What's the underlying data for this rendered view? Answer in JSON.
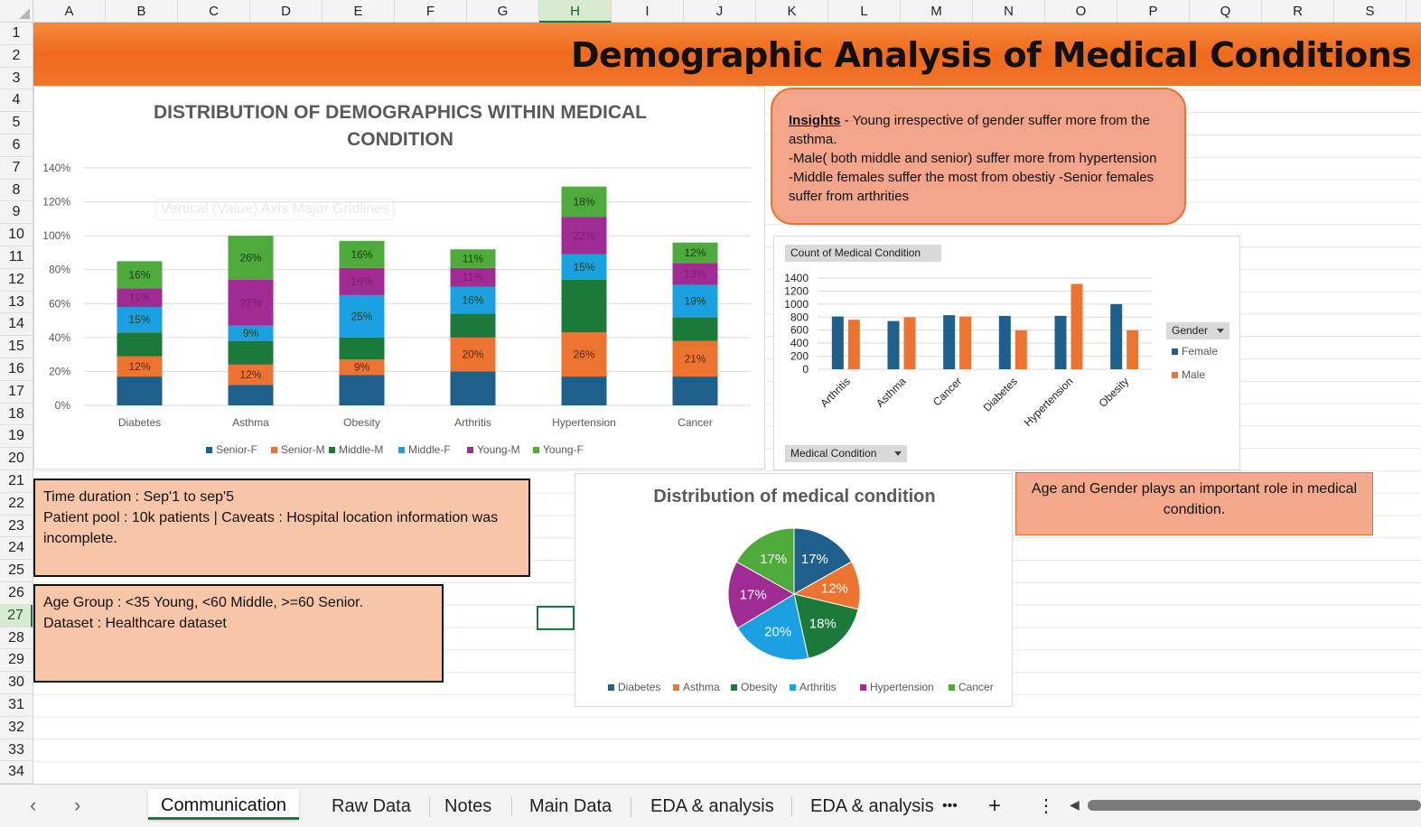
{
  "sheet": {
    "columns": [
      "A",
      "B",
      "C",
      "D",
      "E",
      "F",
      "G",
      "H",
      "I",
      "J",
      "K",
      "L",
      "M",
      "N",
      "O",
      "P",
      "Q",
      "R",
      "S"
    ],
    "selected_column": "H",
    "rows": [
      "1",
      "2",
      "3",
      "4",
      "5",
      "6",
      "7",
      "8",
      "9",
      "10",
      "11",
      "12",
      "13",
      "14",
      "15",
      "16",
      "17",
      "18",
      "19",
      "20",
      "21",
      "22",
      "23",
      "24",
      "25",
      "26",
      "27",
      "28",
      "29",
      "30",
      "31",
      "32",
      "33",
      "34"
    ],
    "selected_row": "27"
  },
  "banner": {
    "title": "Demographic Analysis of Medical Conditions"
  },
  "stacked_chart": {
    "title": "DISTRIBUTION OF DEMOGRAPHICS WITHIN MEDICAL CONDITION",
    "ghost_tooltip": "Vertical (Value) Axis Major Gridlines",
    "y_ticks": [
      "0%",
      "20%",
      "40%",
      "60%",
      "80%",
      "100%",
      "120%",
      "140%"
    ]
  },
  "insights": {
    "heading": "Insights",
    "line1": " - Young irrespective of gender suffer more from the asthma.",
    "line2": "-Male( both middle and senior) suffer more from hypertension",
    "line3": "-Middle females suffer the most from obestiy -Senior females suffer from arthrities"
  },
  "pivot_chart": {
    "field_button": "Count of Medical Condition",
    "legend_title": "Gender",
    "axis_button": "Medical Condition",
    "y_ticks": [
      "0",
      "200",
      "400",
      "600",
      "800",
      "1000",
      "1200",
      "1400"
    ]
  },
  "notes": {
    "box1_line1": "Time duration : Sep'1 to sep'5",
    "box1_line2": "Patient pool : 10k patients | Caveats : Hospital location information was incomplete.",
    "box2_line1": "Age Group : <35 Young, <60 Middle, >=60 Senior.",
    "box2_line2": "Dataset : Healthcare dataset"
  },
  "pie_chart": {
    "title": "Distribution of medical condition"
  },
  "conclusion": {
    "text": "Age and Gender plays an important role in medical condition."
  },
  "tabs": {
    "items": [
      "Communication",
      "Raw Data",
      "Notes",
      "Main Data",
      "EDA & analysis",
      "EDA & analysis"
    ],
    "active": "Communication",
    "more": "•••",
    "add": "+",
    "options": "⋮"
  },
  "colors": {
    "senior_f": "#1f5f8b",
    "senior_m": "#ed7330",
    "middle_m": "#1b7a3a",
    "middle_f": "#1ba1e2",
    "young_m": "#a02b93",
    "young_f": "#4eaa3a",
    "female": "#1f5f8b",
    "male": "#ed7330",
    "banner": "#ef6a1c"
  },
  "chart_data": [
    {
      "type": "bar",
      "stacked": true,
      "title": "DISTRIBUTION OF DEMOGRAPHICS WITHIN MEDICAL CONDITION",
      "categories": [
        "Diabetes",
        "Asthma",
        "Obesity",
        "Arthritis",
        "Hypertension",
        "Cancer"
      ],
      "series": [
        {
          "name": "Senior-F",
          "values": [
            17,
            12,
            18,
            20,
            17,
            17
          ]
        },
        {
          "name": "Senior-M",
          "values": [
            12,
            12,
            9,
            20,
            26,
            21
          ]
        },
        {
          "name": "Middle-M",
          "values": [
            14,
            14,
            13,
            14,
            31,
            14
          ]
        },
        {
          "name": "Middle-F",
          "values": [
            15,
            9,
            25,
            16,
            15,
            19
          ]
        },
        {
          "name": "Young-M",
          "values": [
            11,
            27,
            16,
            11,
            22,
            13
          ]
        },
        {
          "name": "Young-F",
          "values": [
            16,
            26,
            16,
            11,
            18,
            12
          ]
        }
      ],
      "ylim": [
        0,
        140
      ],
      "y_unit": "%",
      "legend": "bottom"
    },
    {
      "type": "bar",
      "title": "Count of Medical Condition",
      "categories": [
        "Arthritis",
        "Asthma",
        "Cancer",
        "Diabetes",
        "Hypertension",
        "Obesity"
      ],
      "series": [
        {
          "name": "Female",
          "values": [
            810,
            740,
            830,
            820,
            820,
            1000
          ]
        },
        {
          "name": "Male",
          "values": [
            760,
            800,
            810,
            600,
            1310,
            600
          ]
        }
      ],
      "ylim": [
        0,
        1400
      ],
      "legend": "right"
    },
    {
      "type": "pie",
      "title": "Distribution of medical condition",
      "categories": [
        "Diabetes",
        "Asthma",
        "Obesity",
        "Arthritis",
        "Hypertension",
        "Cancer"
      ],
      "values": [
        17,
        12,
        18,
        20,
        17,
        17
      ],
      "labels": [
        "17%",
        "12%",
        "18%",
        "20%",
        "17%",
        "17%"
      ],
      "legend": "bottom"
    }
  ]
}
